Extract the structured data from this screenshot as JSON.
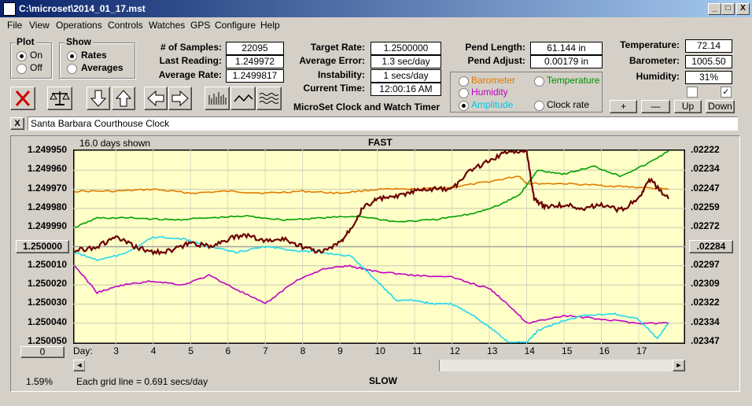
{
  "window": {
    "title": "C:\\microset\\2014_01_17.mst",
    "min": "_",
    "max": "□",
    "close": "X"
  },
  "menu": [
    "File",
    "View",
    "Operations",
    "Controls",
    "Watches",
    "GPS",
    "Configure",
    "Help"
  ],
  "plot_group": {
    "label": "Plot",
    "options": [
      "On",
      "Off"
    ],
    "selected": "On"
  },
  "show_group": {
    "label": "Show",
    "options": [
      "Rates",
      "Averages"
    ],
    "selected": "Rates"
  },
  "stats": {
    "samples_label": "# of Samples:",
    "samples": "22095",
    "last_label": "Last Reading:",
    "last": "1.249972",
    "avg_label": "Average Rate:",
    "avg": "1.2499817",
    "target_label": "Target Rate:",
    "target": "1.2500000",
    "err_label": "Average Error:",
    "err": "1.3 sec/day",
    "inst_label": "Instability:",
    "inst": "1 secs/day",
    "time_label": "Current Time:",
    "time": "12:00:16 AM",
    "app_name": "MicroSet Clock and Watch Timer",
    "pend_len_label": "Pend Length:",
    "pend_len": "61.144 in",
    "pend_adj_label": "Pend Adjust:",
    "pend_adj": "0.00179 in",
    "temp_label": "Temperature:",
    "temp": "72.14",
    "baro_label": "Barometer:",
    "baro": "1005.50",
    "hum_label": "Humidity:",
    "hum": "31%"
  },
  "sensor_options": [
    {
      "label": "Barometer",
      "color": "#e07b00",
      "selected": false
    },
    {
      "label": "Temperature",
      "color": "#009000",
      "selected": false
    },
    {
      "label": "Humidity",
      "color": "#c000c0",
      "selected": false
    },
    {
      "label": "Amplitude",
      "color": "#00c8e0",
      "selected": true
    },
    {
      "label": "Clock rate",
      "color": "#000000",
      "selected": false
    }
  ],
  "scale_buttons": [
    "+",
    "—",
    "Up",
    "Down"
  ],
  "clock_name": "Santa Barbara Courthouse Clock",
  "clock_close": "X",
  "chart_header": {
    "days_shown": "16.0 days shown",
    "fast": "FAST",
    "slow": "SLOW",
    "grid_note": "Each grid line = 0.691 secs/day",
    "percent": "1.59%",
    "day_label": "Day:",
    "day_button": "0"
  },
  "chart_data": {
    "type": "line",
    "y_left_ticks": [
      "1.249950",
      "1.249960",
      "1.249970",
      "1.249980",
      "1.249990",
      "1.250000",
      "1.250010",
      "1.250020",
      "1.250030",
      "1.250040",
      "1.250050"
    ],
    "y_left_center_button": "1.250000",
    "y_right_ticks": [
      ".02222",
      ".02234",
      ".02247",
      ".02259",
      ".02272",
      ".02284",
      ".02297",
      ".02309",
      ".02322",
      ".02334",
      ".02347"
    ],
    "y_right_center_button": ".02284",
    "x_ticks": [
      "3",
      "4",
      "5",
      "6",
      "7",
      "8",
      "9",
      "10",
      "11",
      "12",
      "13",
      "14",
      "15",
      "16",
      "17"
    ],
    "x_range": [
      1.9,
      18.2
    ],
    "y_range": [
      1.25005,
      1.24995
    ],
    "grid": true,
    "series": [
      {
        "name": "Barometer",
        "color": "#e07b00",
        "x": [
          1.9,
          3,
          4,
          5,
          6,
          7,
          8,
          9,
          10,
          11,
          12,
          13,
          13.8,
          14,
          15,
          16,
          17,
          17.8
        ],
        "y": [
          1.249971,
          1.249971,
          1.24997,
          1.249972,
          1.249971,
          1.249972,
          1.249971,
          1.249972,
          1.24997,
          1.24997,
          1.249969,
          1.249966,
          1.249963,
          1.249967,
          1.249967,
          1.249968,
          1.249969,
          1.24997
        ]
      },
      {
        "name": "Temperature",
        "color": "#00a000",
        "x": [
          1.9,
          2.5,
          3.5,
          4.5,
          5.5,
          6.5,
          7.5,
          8.5,
          9.5,
          10.5,
          11.5,
          12.5,
          13.3,
          13.8,
          14.3,
          15,
          15.8,
          16.5,
          17.2,
          17.8
        ],
        "y": [
          1.24999,
          1.249985,
          1.249985,
          1.249986,
          1.249985,
          1.249984,
          1.249986,
          1.249985,
          1.249984,
          1.249987,
          1.249986,
          1.249983,
          1.249978,
          1.249973,
          1.24996,
          1.249962,
          1.249958,
          1.249963,
          1.249957,
          1.24995
        ]
      },
      {
        "name": "Humidity",
        "color": "#c000c0",
        "x": [
          1.9,
          2.5,
          3.2,
          4,
          4.8,
          5.5,
          6.2,
          7,
          7.8,
          8.5,
          9.2,
          10,
          11,
          12,
          13,
          13.5,
          14,
          15,
          16,
          17,
          17.8
        ],
        "y": [
          1.25001,
          1.250024,
          1.25002,
          1.250018,
          1.25002,
          1.250015,
          1.250022,
          1.25003,
          1.250018,
          1.250012,
          1.25001,
          1.250013,
          1.250015,
          1.250016,
          1.250022,
          1.25003,
          1.25004,
          1.250036,
          1.250038,
          1.25004,
          1.25004
        ]
      },
      {
        "name": "Amplitude",
        "color": "#20d8f0",
        "x": [
          1.9,
          2.5,
          3.2,
          4,
          4.8,
          5.5,
          6.2,
          7,
          7.8,
          8.5,
          9.3,
          10,
          10.5,
          11,
          11.5,
          12,
          12.5,
          13,
          13.5,
          14,
          14.3,
          14.8,
          15.5,
          16.3,
          17,
          17.5,
          17.8
        ],
        "y": [
          1.250003,
          1.250007,
          1.250004,
          1.249995,
          1.249996,
          1.25,
          1.250003,
          1.25,
          1.250002,
          1.250003,
          1.250005,
          1.250018,
          1.250028,
          1.250028,
          1.25003,
          1.25003,
          1.250035,
          1.250042,
          1.25005,
          1.25005,
          1.250044,
          1.25004,
          1.250036,
          1.250035,
          1.250038,
          1.250048,
          1.25004
        ]
      },
      {
        "name": "Clock rate",
        "color": "#6b0000",
        "x": [
          1.9,
          2.5,
          3,
          3.5,
          4,
          4.5,
          5,
          5.5,
          6,
          6.5,
          7,
          7.5,
          8,
          8.5,
          9,
          9.3,
          9.6,
          10,
          10.5,
          11,
          11.5,
          12,
          12.5,
          13,
          13.5,
          14,
          14.2,
          14.5,
          15,
          15.5,
          16,
          16.5,
          17,
          17.3,
          17.8
        ],
        "y": [
          1.250002,
          1.25,
          1.249995,
          1.25,
          1.250003,
          1.250002,
          1.249998,
          1.25,
          1.249996,
          1.249994,
          1.249997,
          1.249996,
          1.25,
          1.250003,
          1.249998,
          1.24999,
          1.24998,
          1.249975,
          1.249974,
          1.249971,
          1.24997,
          1.24997,
          1.24996,
          1.249955,
          1.24995,
          1.24995,
          1.249975,
          1.249979,
          1.249978,
          1.24998,
          1.249978,
          1.249981,
          1.249975,
          1.249965,
          1.249975
        ]
      }
    ]
  }
}
